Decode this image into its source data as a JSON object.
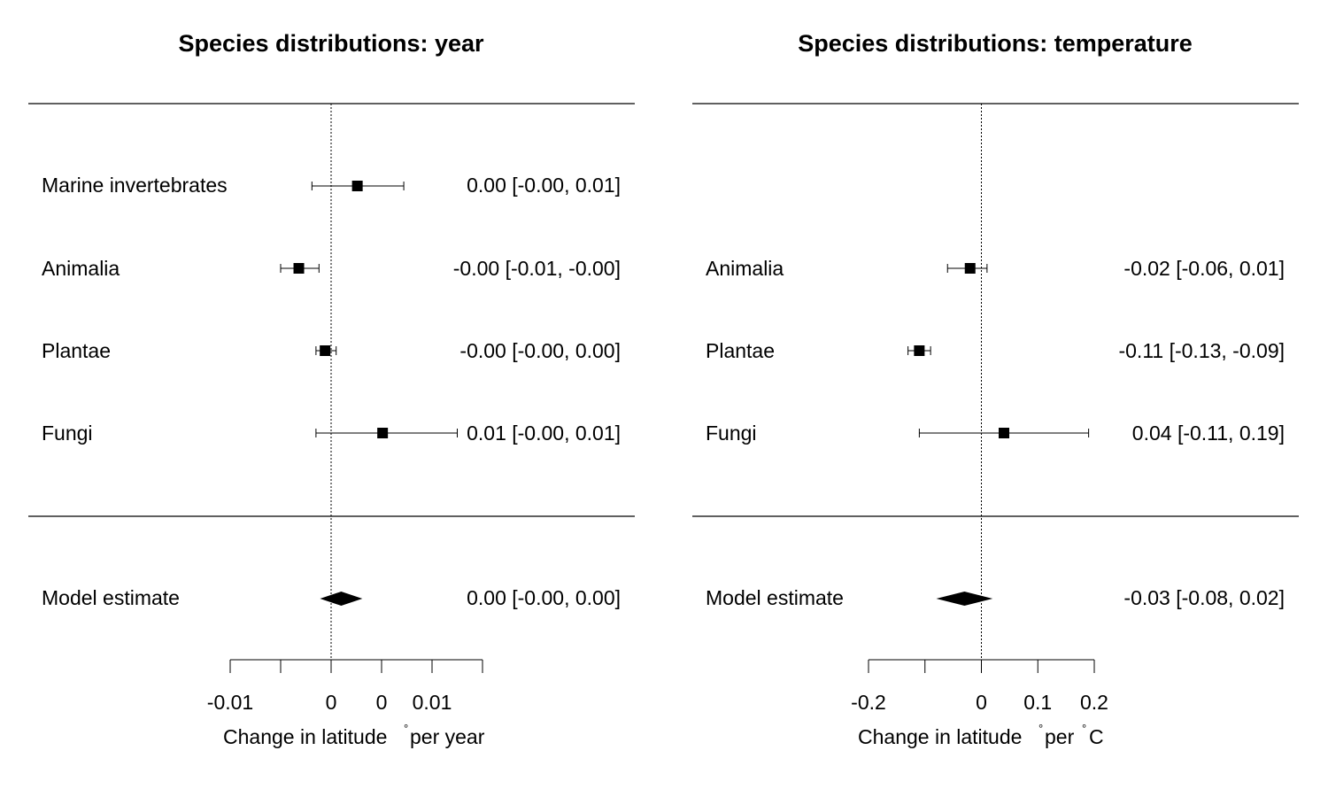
{
  "chart_data": [
    {
      "type": "forest",
      "title": "Species distributions: year",
      "xlabel": "Change in latitude ° per year",
      "xlabel_parts": [
        "Change in latitude",
        "°",
        "per year"
      ],
      "xlim": [
        -0.01,
        0.015
      ],
      "tick_values": [
        -0.01,
        -0.005,
        0,
        0.005,
        0.01,
        0.015
      ],
      "tick_labels": [
        "-0.01",
        "",
        "0",
        "0",
        "0.01",
        ""
      ],
      "reference_line": 0,
      "studies": [
        {
          "label": "Marine invertebrates",
          "estimate": 0.0026,
          "lower": -0.0019,
          "upper": 0.0072,
          "text": "0.00 [-0.00,  0.01]"
        },
        {
          "label": "Animalia",
          "estimate": -0.0032,
          "lower": -0.005,
          "upper": -0.0012,
          "text": "-0.00 [-0.01, -0.00]"
        },
        {
          "label": "Plantae",
          "estimate": -0.0006,
          "lower": -0.0015,
          "upper": 0.0005,
          "text": "-0.00 [-0.00,  0.00]"
        },
        {
          "label": "Fungi",
          "estimate": 0.0051,
          "lower": -0.0015,
          "upper": 0.0125,
          "text": "0.01 [-0.00,  0.01]"
        }
      ],
      "summary": {
        "label": "Model estimate",
        "estimate": 0.001,
        "lower": -0.0011,
        "upper": 0.0031,
        "text": "0.00 [-0.00,  0.00]"
      }
    },
    {
      "type": "forest",
      "title": "Species distributions: temperature",
      "xlabel": "Change in latitude ° per °C",
      "xlabel_parts": [
        "Change in latitude",
        "°",
        "per",
        "°",
        "C"
      ],
      "xlim": [
        -0.2,
        0.2
      ],
      "tick_values": [
        -0.2,
        -0.1,
        0,
        0.1,
        0.2
      ],
      "tick_labels": [
        "-0.2",
        "",
        "0",
        "0.1",
        "0.2"
      ],
      "reference_line": 0,
      "studies": [
        {
          "label": "Animalia",
          "estimate": -0.02,
          "lower": -0.06,
          "upper": 0.01,
          "text": "-0.02 [-0.06,  0.01]"
        },
        {
          "label": "Plantae",
          "estimate": -0.11,
          "lower": -0.13,
          "upper": -0.09,
          "text": "-0.11 [-0.13, -0.09]"
        },
        {
          "label": "Fungi",
          "estimate": 0.04,
          "lower": -0.11,
          "upper": 0.19,
          "text": "0.04 [-0.11,  0.19]"
        }
      ],
      "summary": {
        "label": "Model estimate",
        "estimate": -0.03,
        "lower": -0.08,
        "upper": 0.02,
        "text": "-0.03 [-0.08,  0.02]"
      }
    }
  ]
}
